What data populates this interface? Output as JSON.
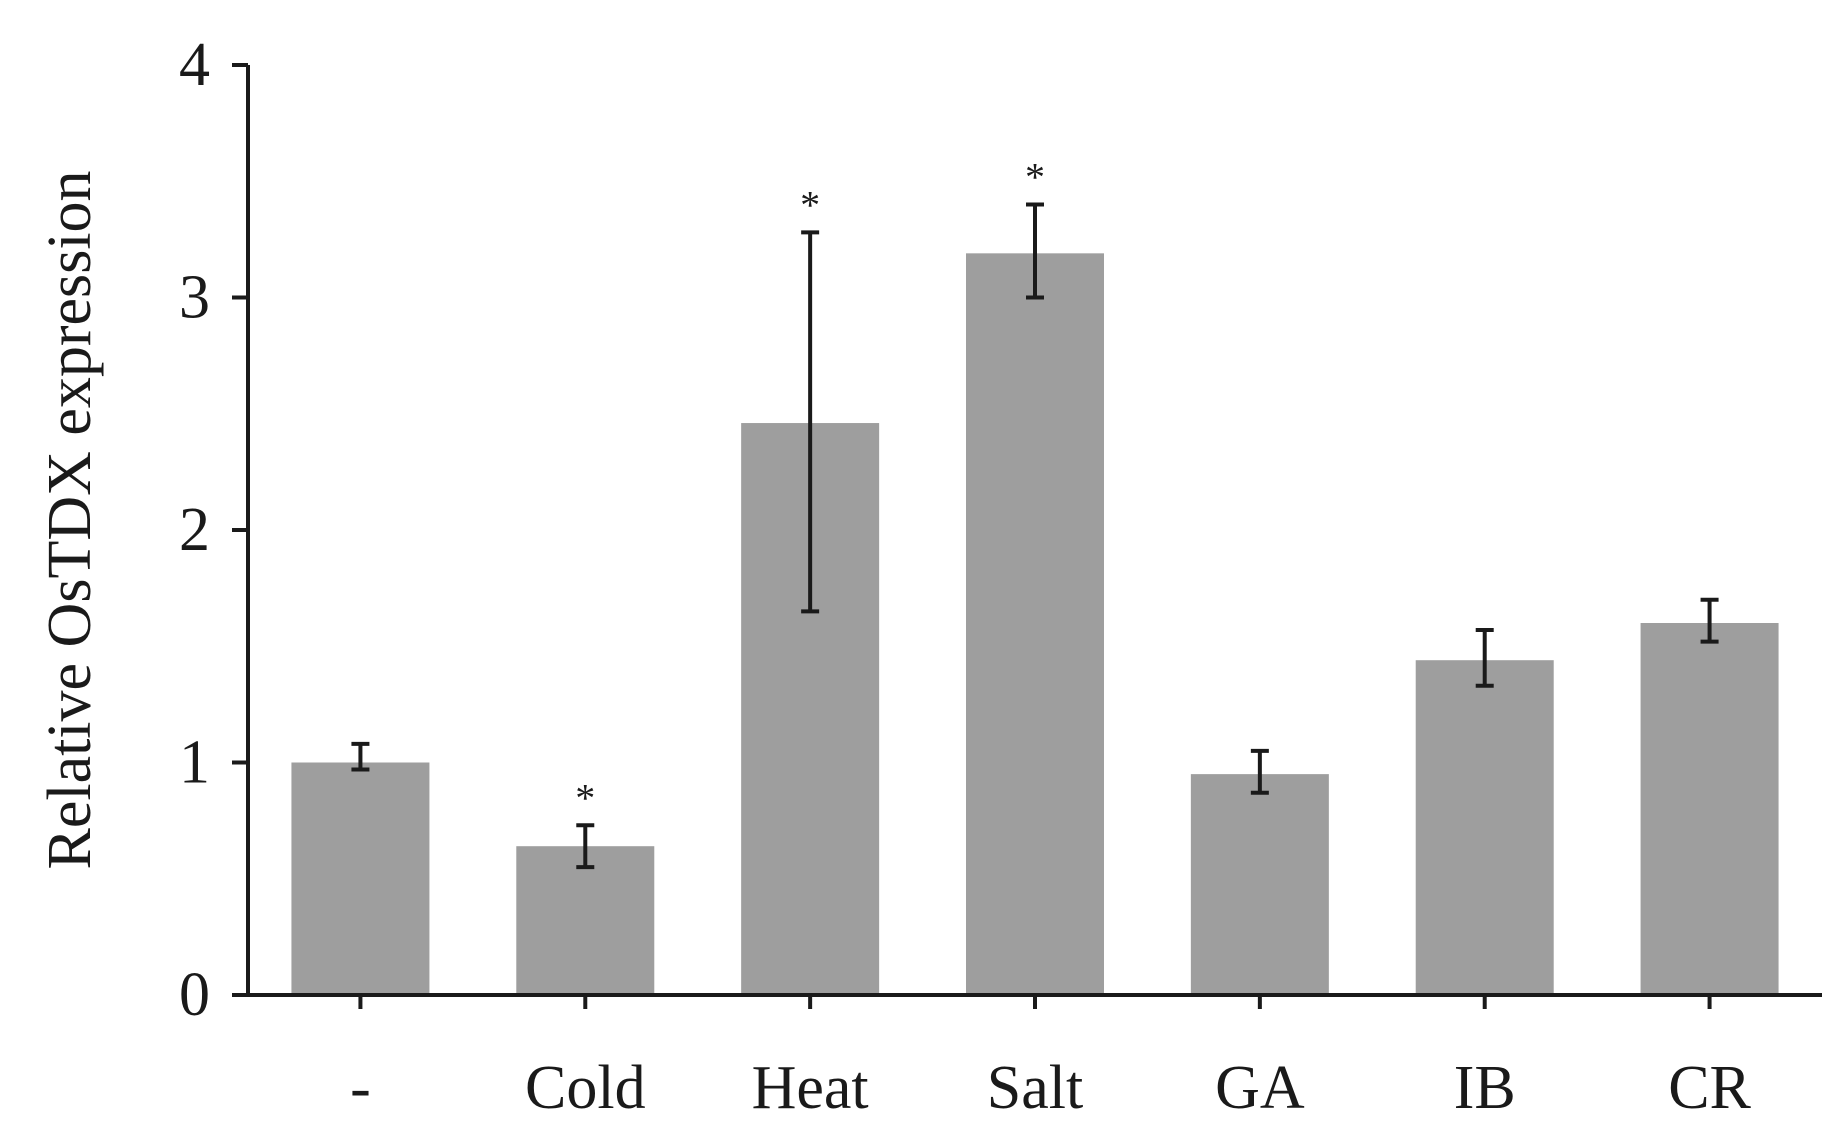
{
  "chart_data": {
    "type": "bar",
    "title": "",
    "xlabel": "",
    "ylabel": "Relative OsTDX expression",
    "ylim": [
      0,
      4
    ],
    "yticks": [
      0,
      1,
      2,
      3,
      4
    ],
    "grid": false,
    "categories": [
      "-",
      "Cold",
      "Heat",
      "Salt",
      "GA",
      "IB",
      "CR"
    ],
    "values": [
      1.0,
      0.64,
      2.46,
      3.19,
      0.95,
      1.44,
      1.6
    ],
    "error_low": [
      0.97,
      0.55,
      1.65,
      3.0,
      0.87,
      1.33,
      1.52
    ],
    "error_high": [
      1.08,
      0.73,
      3.28,
      3.4,
      1.05,
      1.57,
      1.7
    ],
    "significance": [
      "",
      "*",
      "*",
      "*",
      "",
      "",
      ""
    ],
    "bar_color": "#9e9e9e",
    "axis_color": "#1a1a1a"
  }
}
